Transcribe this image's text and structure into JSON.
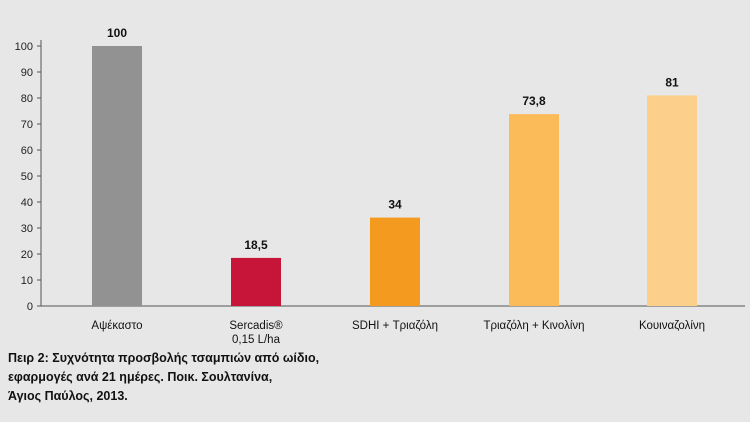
{
  "chart_data": {
    "type": "bar",
    "categories": [
      "Αψέκαστο",
      "Sercadis®\n0,15 L/ha",
      "SDHI + Τριαζόλη",
      "Τριαζόλη + Κινολίνη",
      "Κουιναζολίνη"
    ],
    "values": [
      100,
      18.5,
      34,
      73.8,
      81
    ],
    "value_labels": [
      "100",
      "18,5",
      "34",
      "73,8",
      "81"
    ],
    "bar_colors": [
      "#929292",
      "#c7153a",
      "#f39a1f",
      "#fbbb58",
      "#fcd08a"
    ],
    "ylim": [
      0,
      100
    ],
    "yticks": [
      0,
      10,
      20,
      30,
      40,
      50,
      60,
      70,
      80,
      90,
      100
    ],
    "title": "",
    "xlabel": "",
    "ylabel": "",
    "grid": false
  },
  "caption": {
    "lines": [
      "Πειρ 2: Συχνότητα προσβολής τσαμπιών από ωίδιο,",
      "εφαρμογές ανά 21 ημέρες. Ποικ. Σουλτανίνα,",
      "Άγιος Παύλος, 2013."
    ]
  }
}
